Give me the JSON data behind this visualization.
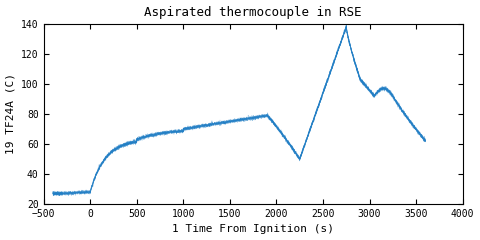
{
  "title": "Aspirated thermocouple in RSE",
  "xlabel": "1 Time From Ignition (s)",
  "ylabel": "19 TF24A (C)",
  "xlim": [
    -500,
    4000
  ],
  "ylim": [
    20,
    140
  ],
  "xticks": [
    -500,
    0,
    500,
    1000,
    1500,
    2000,
    2500,
    3000,
    3500,
    4000
  ],
  "yticks": [
    20,
    40,
    60,
    80,
    100,
    120,
    140
  ],
  "line_color": "#1b7bc4",
  "bg_color": "#ffffff",
  "font_family": "monospace",
  "title_fontsize": 9,
  "label_fontsize": 8,
  "tick_fontsize": 7
}
